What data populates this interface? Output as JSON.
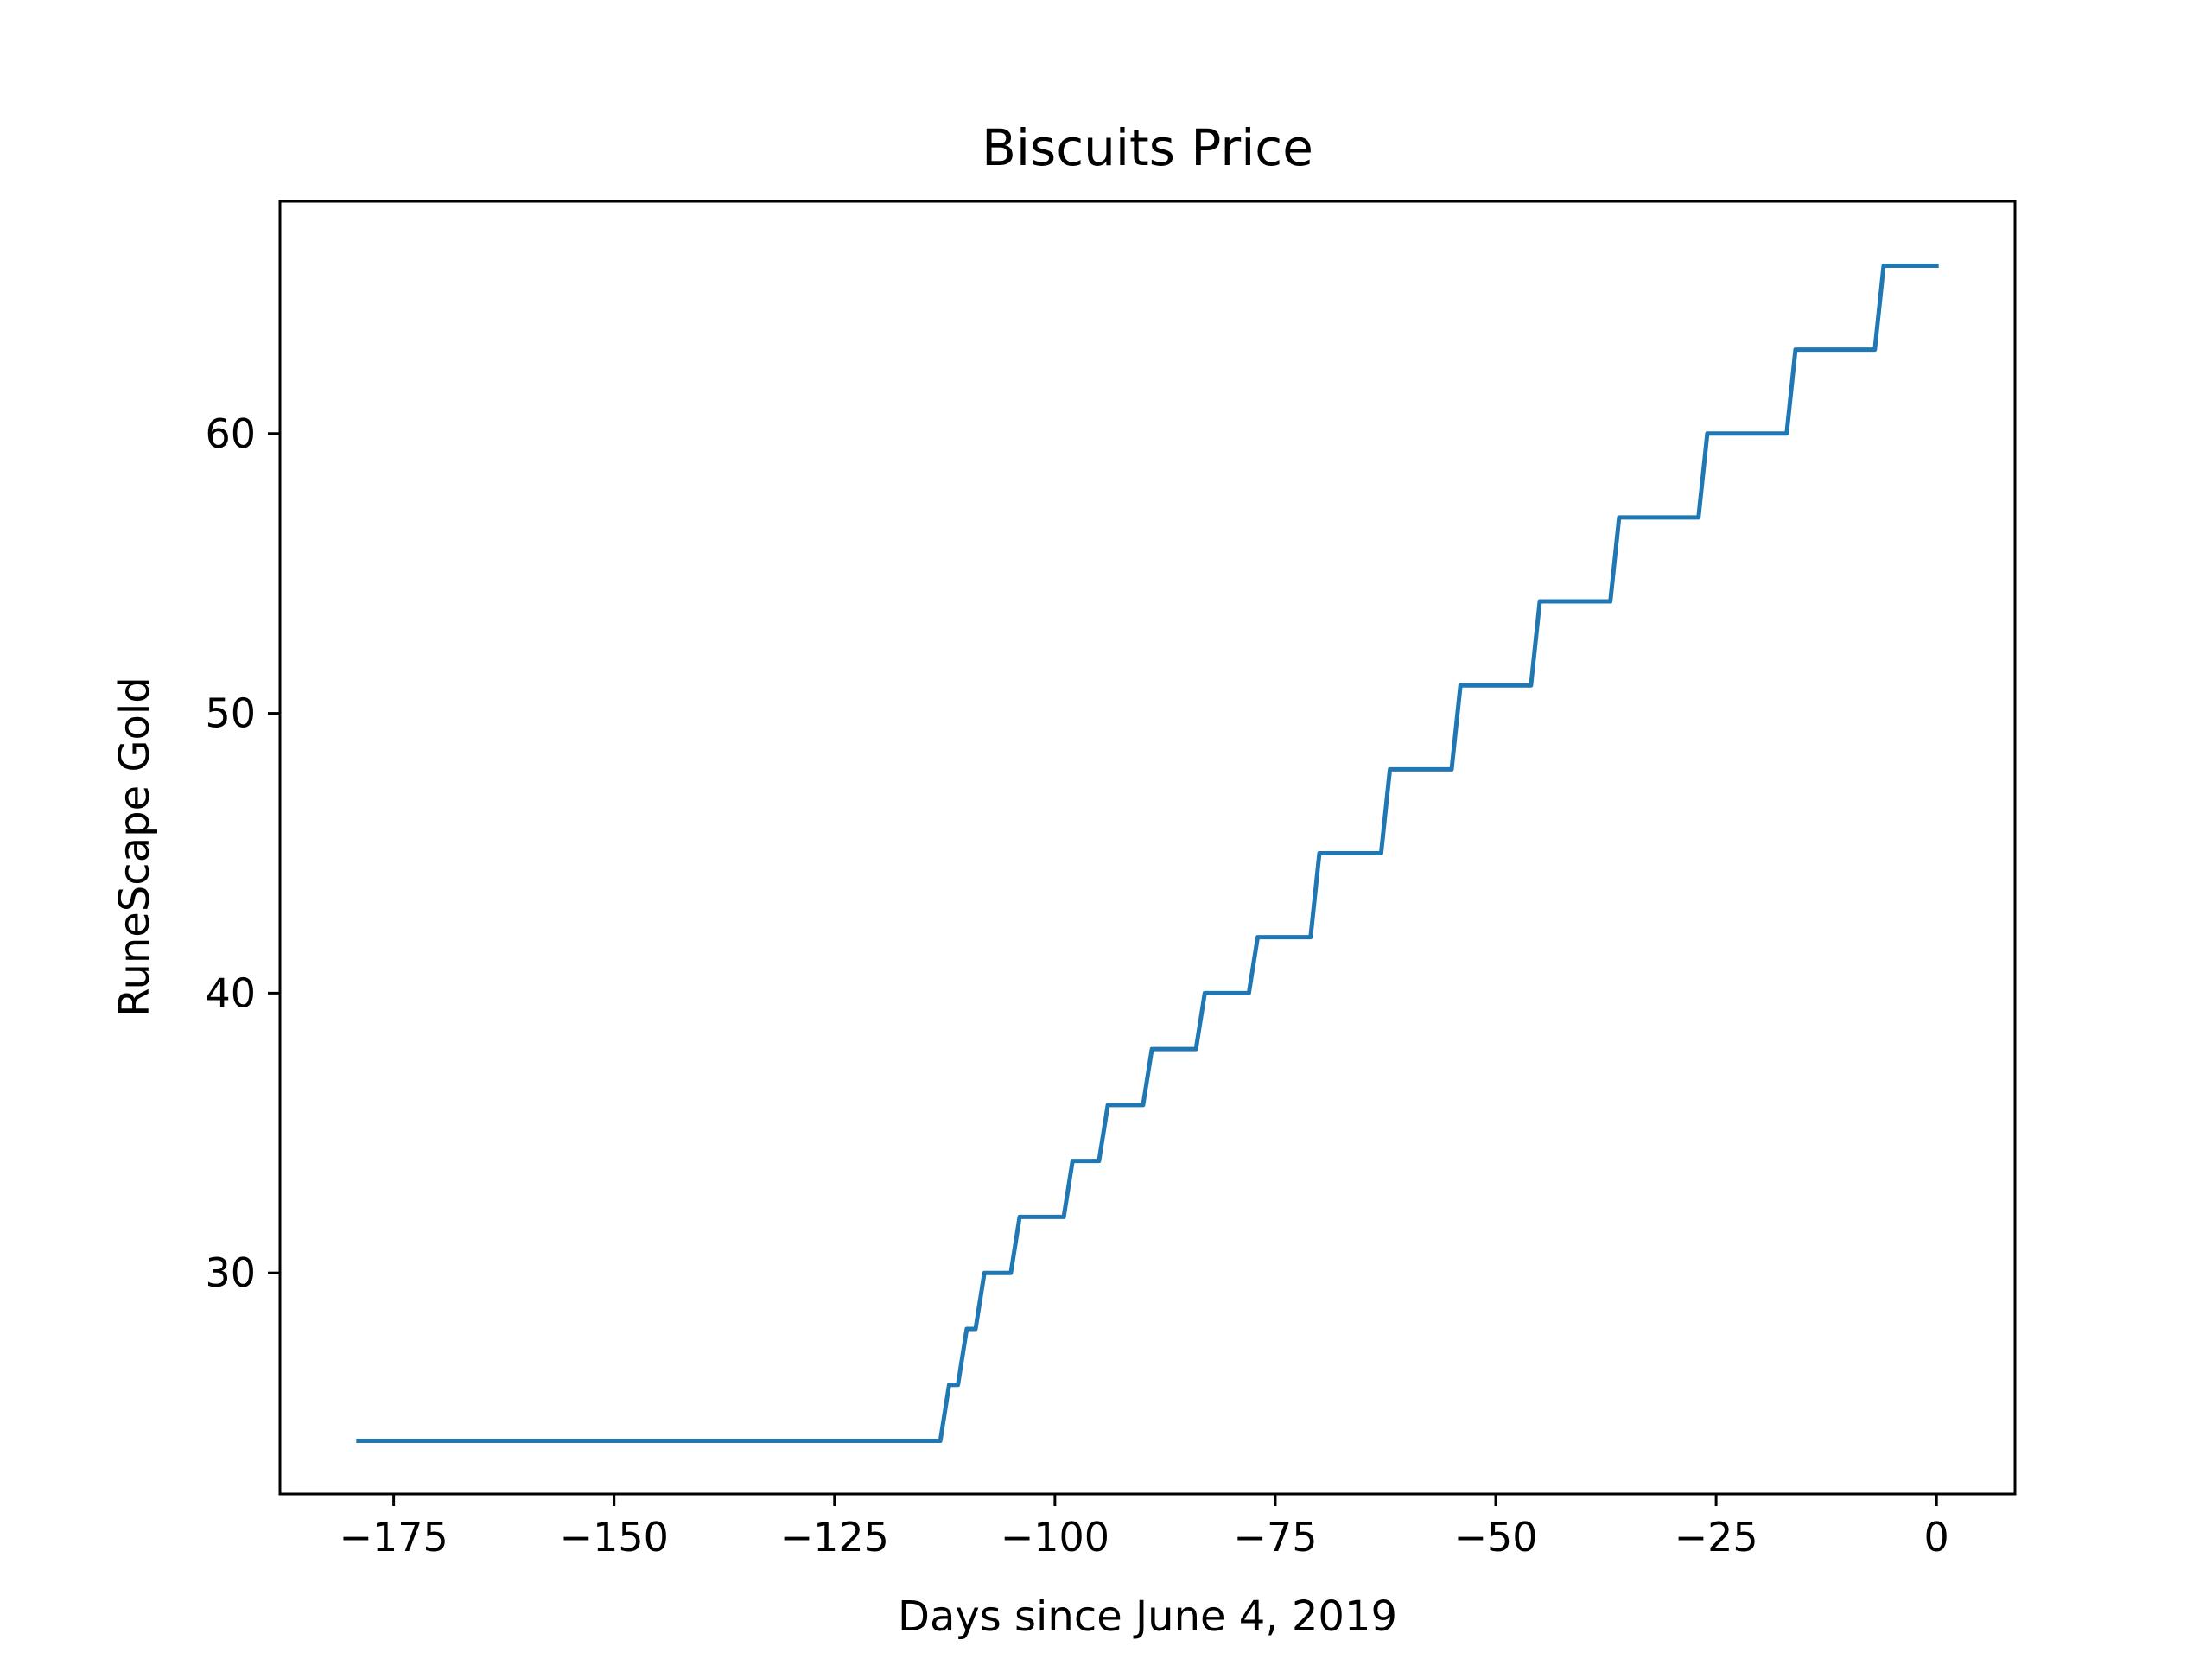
{
  "chart_data": {
    "type": "line",
    "title": "Biscuits Price",
    "xlabel": "Days since June 4, 2019",
    "ylabel": "RuneScape Gold",
    "xlim": [
      -187.9,
      8.9
    ],
    "ylim": [
      22.1,
      68.3
    ],
    "xticks": [
      -175,
      -150,
      -125,
      -100,
      -75,
      -50,
      -25,
      0
    ],
    "xtick_labels": [
      "−175",
      "−150",
      "−125",
      "−100",
      "−75",
      "−50",
      "−25",
      "0"
    ],
    "yticks": [
      30,
      40,
      50,
      60
    ],
    "ytick_labels": [
      "30",
      "40",
      "50",
      "60"
    ],
    "grid": false,
    "line_color": "#1f77b4",
    "series": [
      {
        "x": [
          -179,
          -113,
          -112,
          -111,
          -110,
          -109,
          -108,
          -107,
          -106,
          -105,
          -104,
          -103,
          -99,
          -98,
          -95,
          -94,
          -90,
          -89,
          -84,
          -83,
          -78,
          -77,
          -71,
          -70,
          -63,
          -62,
          -55,
          -54,
          -46,
          -45,
          -37,
          -36,
          -27,
          -26,
          -17,
          -16,
          -7,
          -6,
          0
        ],
        "y": [
          24,
          24,
          26,
          26,
          28,
          28,
          30,
          30,
          30,
          30,
          32,
          32,
          32,
          34,
          34,
          36,
          36,
          38,
          38,
          40,
          40,
          42,
          42,
          45,
          45,
          48,
          48,
          51,
          51,
          54,
          54,
          57,
          57,
          60,
          60,
          63,
          63,
          66,
          66
        ]
      }
    ]
  }
}
